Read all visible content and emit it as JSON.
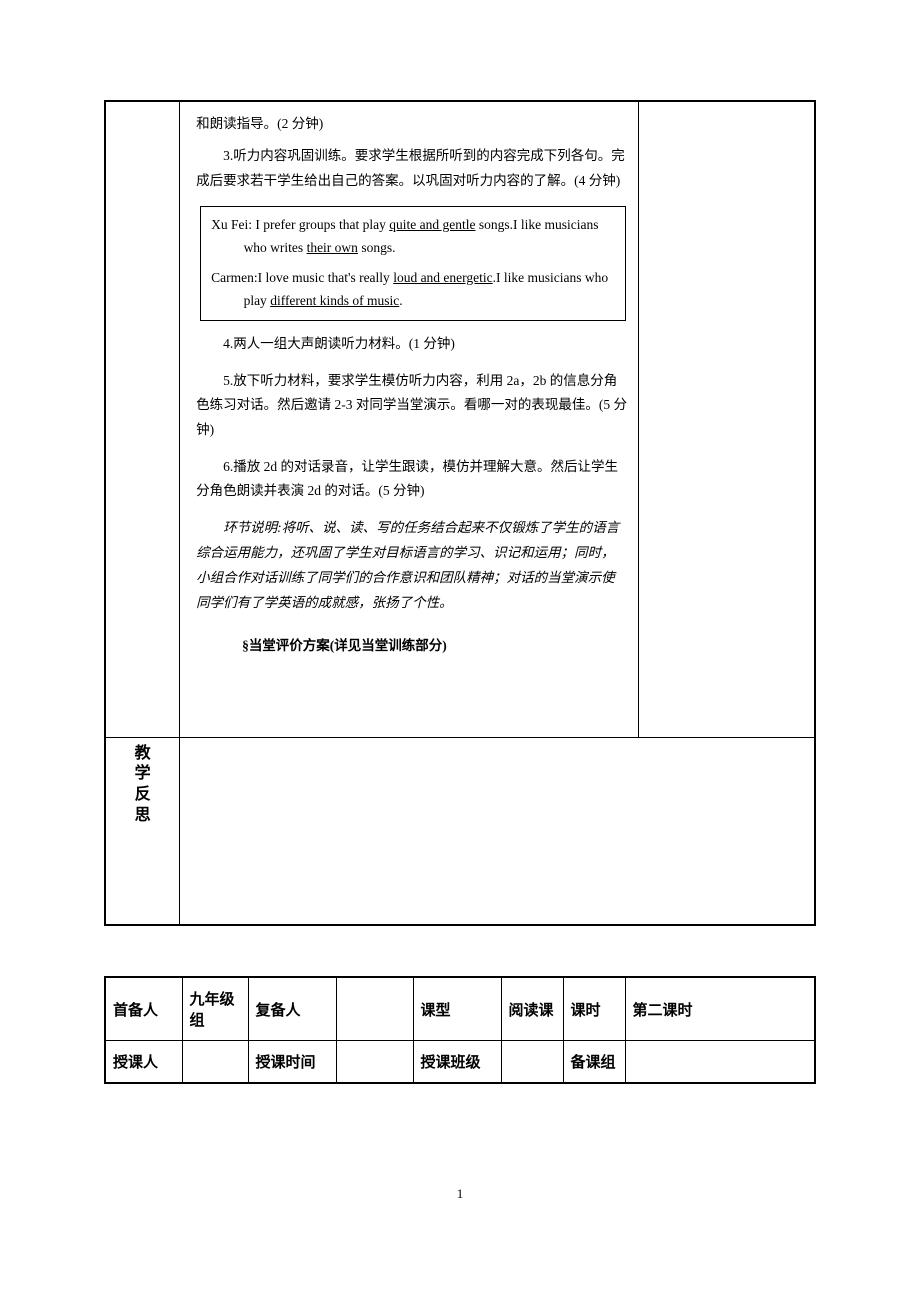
{
  "main_content": {
    "p1": "和朗读指导。(2 分钟)",
    "p2": "3.听力内容巩固训练。要求学生根据所听到的内容完成下列各句。完成后要求若干学生给出自己的答案。以巩固对听力内容的了解。(4 分钟)",
    "inset": {
      "line1_a": "Xu Fei: I prefer groups that play ",
      "line1_u": "quite and gentle",
      "line1_b": " songs.I like musicians who writes ",
      "line1_u2": "their own",
      "line1_c": " songs.",
      "line2_a": "Carmen:I love music that's really ",
      "line2_u": "loud and energetic",
      "line2_b": ".I like musicians who play ",
      "line2_u2": "different kinds of music",
      "line2_c": "."
    },
    "p3": "4.两人一组大声朗读听力材料。(1 分钟)",
    "p4": "5.放下听力材料，要求学生模仿听力内容，利用 2a，2b 的信息分角色练习对话。然后邀请 2-3 对同学当堂演示。看哪一对的表现最佳。(5 分钟)",
    "p5": "6.播放 2d 的对话录音，让学生跟读，模仿并理解大意。然后让学生分角色朗读并表演 2d 的对话。(5 分钟)",
    "p6": "环节说明:将听、说、读、写的任务结合起来不仅锻炼了学生的语言综合运用能力，还巩固了学生对目标语言的学习、识记和运用；同时，小组合作对话训练了同学们的合作意识和团队精神；对话的当堂演示使同学们有了学英语的成就感，张扬了个性。",
    "p7": "§当堂评价方案(详见当堂训练部分)"
  },
  "reflection_label": {
    "c1": "教",
    "c2": "学",
    "c3": "反",
    "c4": "思"
  },
  "info_table": {
    "row1": {
      "c1": "首备人",
      "c2": "九年级组",
      "c3": "复备人",
      "c4": "",
      "c5": "课型",
      "c6": "阅读课",
      "c7": "课时",
      "c8": "第二课时"
    },
    "row2": {
      "c1": "授课人",
      "c2": "",
      "c3": "授课时间",
      "c4": "",
      "c5": "授课班级",
      "c6": "",
      "c7": "备课组",
      "c8": ""
    }
  },
  "page_number": "1"
}
